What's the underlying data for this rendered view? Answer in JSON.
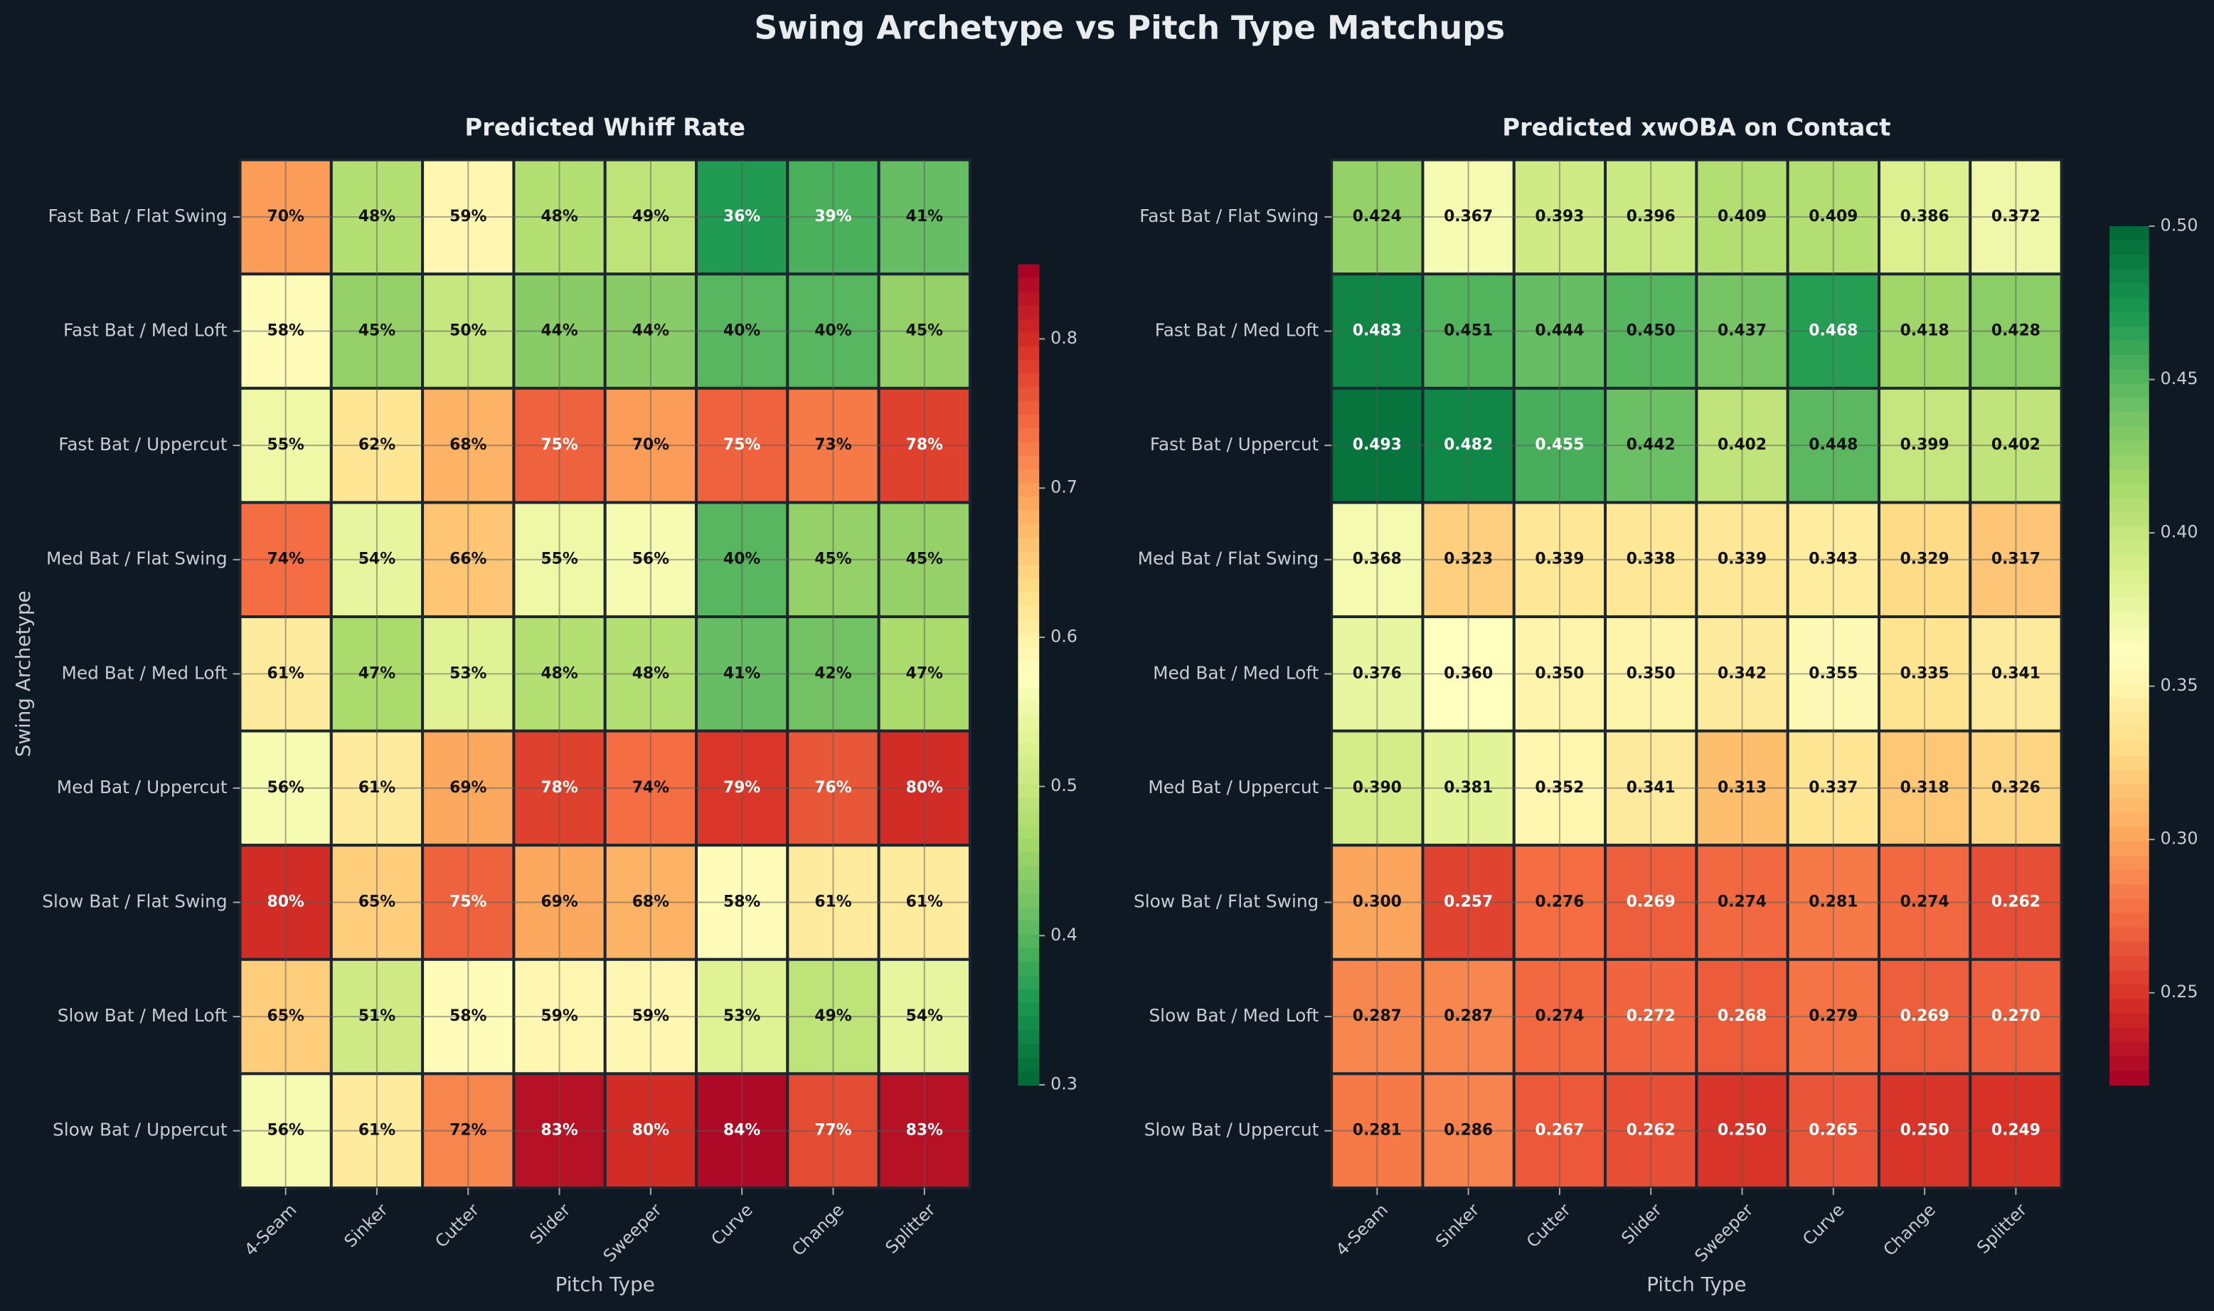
{
  "title": "Swing Archetype vs Pitch Type Matchups",
  "chart_data": [
    {
      "type": "heatmap",
      "title": "Predicted Whiff Rate",
      "xlabel": "Pitch Type",
      "ylabel": "Swing Archetype",
      "categories": [
        "4-Seam",
        "Sinker",
        "Cutter",
        "Slider",
        "Sweeper",
        "Curve",
        "Change",
        "Splitter"
      ],
      "rows": [
        "Fast Bat / Flat Swing",
        "Fast Bat / Med Loft",
        "Fast Bat / Uppercut",
        "Med Bat / Flat Swing",
        "Med Bat / Med Loft",
        "Med Bat / Uppercut",
        "Slow Bat / Flat Swing",
        "Slow Bat / Med Loft",
        "Slow Bat / Uppercut"
      ],
      "values": [
        [
          0.7,
          0.48,
          0.59,
          0.48,
          0.49,
          0.36,
          0.39,
          0.41
        ],
        [
          0.58,
          0.45,
          0.5,
          0.44,
          0.44,
          0.4,
          0.4,
          0.45
        ],
        [
          0.55,
          0.62,
          0.68,
          0.75,
          0.7,
          0.75,
          0.73,
          0.78
        ],
        [
          0.74,
          0.54,
          0.66,
          0.55,
          0.56,
          0.4,
          0.45,
          0.45
        ],
        [
          0.61,
          0.47,
          0.53,
          0.48,
          0.48,
          0.41,
          0.42,
          0.47
        ],
        [
          0.56,
          0.61,
          0.69,
          0.78,
          0.74,
          0.79,
          0.76,
          0.8
        ],
        [
          0.8,
          0.65,
          0.75,
          0.69,
          0.68,
          0.58,
          0.61,
          0.61
        ],
        [
          0.65,
          0.51,
          0.58,
          0.59,
          0.59,
          0.53,
          0.49,
          0.54
        ],
        [
          0.56,
          0.61,
          0.72,
          0.83,
          0.8,
          0.84,
          0.77,
          0.83
        ]
      ],
      "value_labels": [
        [
          "70%",
          "48%",
          "59%",
          "48%",
          "49%",
          "36%",
          "39%",
          "41%"
        ],
        [
          "58%",
          "45%",
          "50%",
          "44%",
          "44%",
          "40%",
          "40%",
          "45%"
        ],
        [
          "55%",
          "62%",
          "68%",
          "75%",
          "70%",
          "75%",
          "73%",
          "78%"
        ],
        [
          "74%",
          "54%",
          "66%",
          "55%",
          "56%",
          "40%",
          "45%",
          "45%"
        ],
        [
          "61%",
          "47%",
          "53%",
          "48%",
          "48%",
          "41%",
          "42%",
          "47%"
        ],
        [
          "56%",
          "61%",
          "69%",
          "78%",
          "74%",
          "79%",
          "76%",
          "80%"
        ],
        [
          "80%",
          "65%",
          "75%",
          "69%",
          "68%",
          "58%",
          "61%",
          "61%"
        ],
        [
          "65%",
          "51%",
          "58%",
          "59%",
          "59%",
          "53%",
          "49%",
          "54%"
        ],
        [
          "56%",
          "61%",
          "72%",
          "83%",
          "80%",
          "84%",
          "77%",
          "83%"
        ]
      ],
      "clim": [
        0.3,
        0.85
      ],
      "cticks": [
        0.3,
        0.4,
        0.5,
        0.6,
        0.7,
        0.8
      ],
      "colormap": [
        "#006837",
        "#1a9850",
        "#66bd63",
        "#a6d96a",
        "#d9ef8b",
        "#ffffbf",
        "#fee08b",
        "#fdae61",
        "#f46d43",
        "#d73027",
        "#a50026"
      ]
    },
    {
      "type": "heatmap",
      "title": "Predicted xwOBA on Contact",
      "xlabel": "Pitch Type",
      "categories": [
        "4-Seam",
        "Sinker",
        "Cutter",
        "Slider",
        "Sweeper",
        "Curve",
        "Change",
        "Splitter"
      ],
      "rows": [
        "Fast Bat / Flat Swing",
        "Fast Bat / Med Loft",
        "Fast Bat / Uppercut",
        "Med Bat / Flat Swing",
        "Med Bat / Med Loft",
        "Med Bat / Uppercut",
        "Slow Bat / Flat Swing",
        "Slow Bat / Med Loft",
        "Slow Bat / Uppercut"
      ],
      "values": [
        [
          0.424,
          0.367,
          0.393,
          0.396,
          0.409,
          0.409,
          0.386,
          0.372
        ],
        [
          0.483,
          0.451,
          0.444,
          0.45,
          0.437,
          0.468,
          0.418,
          0.428
        ],
        [
          0.493,
          0.482,
          0.455,
          0.442,
          0.402,
          0.448,
          0.399,
          0.402
        ],
        [
          0.368,
          0.323,
          0.339,
          0.338,
          0.339,
          0.343,
          0.329,
          0.317
        ],
        [
          0.376,
          0.36,
          0.35,
          0.35,
          0.342,
          0.355,
          0.335,
          0.341
        ],
        [
          0.39,
          0.381,
          0.352,
          0.341,
          0.313,
          0.337,
          0.318,
          0.326
        ],
        [
          0.3,
          0.257,
          0.276,
          0.269,
          0.274,
          0.281,
          0.274,
          0.262
        ],
        [
          0.287,
          0.287,
          0.274,
          0.272,
          0.268,
          0.279,
          0.269,
          0.27
        ],
        [
          0.281,
          0.286,
          0.267,
          0.262,
          0.25,
          0.265,
          0.25,
          0.249
        ]
      ],
      "value_labels": [
        [
          "0.424",
          "0.367",
          "0.393",
          "0.396",
          "0.409",
          "0.409",
          "0.386",
          "0.372"
        ],
        [
          "0.483",
          "0.451",
          "0.444",
          "0.450",
          "0.437",
          "0.468",
          "0.418",
          "0.428"
        ],
        [
          "0.493",
          "0.482",
          "0.455",
          "0.442",
          "0.402",
          "0.448",
          "0.399",
          "0.402"
        ],
        [
          "0.368",
          "0.323",
          "0.339",
          "0.338",
          "0.339",
          "0.343",
          "0.329",
          "0.317"
        ],
        [
          "0.376",
          "0.360",
          "0.350",
          "0.350",
          "0.342",
          "0.355",
          "0.335",
          "0.341"
        ],
        [
          "0.390",
          "0.381",
          "0.352",
          "0.341",
          "0.313",
          "0.337",
          "0.318",
          "0.326"
        ],
        [
          "0.300",
          "0.257",
          "0.276",
          "0.269",
          "0.274",
          "0.281",
          "0.274",
          "0.262"
        ],
        [
          "0.287",
          "0.287",
          "0.274",
          "0.272",
          "0.268",
          "0.279",
          "0.269",
          "0.270"
        ],
        [
          "0.281",
          "0.286",
          "0.267",
          "0.262",
          "0.250",
          "0.265",
          "0.250",
          "0.249"
        ]
      ],
      "clim": [
        0.22,
        0.5
      ],
      "cticks": [
        0.25,
        {
          "value": 0.3,
          "label": "0.30"
        },
        0.35,
        {
          "value": 0.4,
          "label": "0.40"
        },
        0.45,
        {
          "value": 0.5,
          "label": "0.50"
        }
      ],
      "colormap": [
        "#a50026",
        "#d73027",
        "#f46d43",
        "#fdae61",
        "#fee08b",
        "#ffffbf",
        "#d9ef8b",
        "#a6d96a",
        "#66bd63",
        "#1a9850",
        "#006837"
      ]
    }
  ]
}
